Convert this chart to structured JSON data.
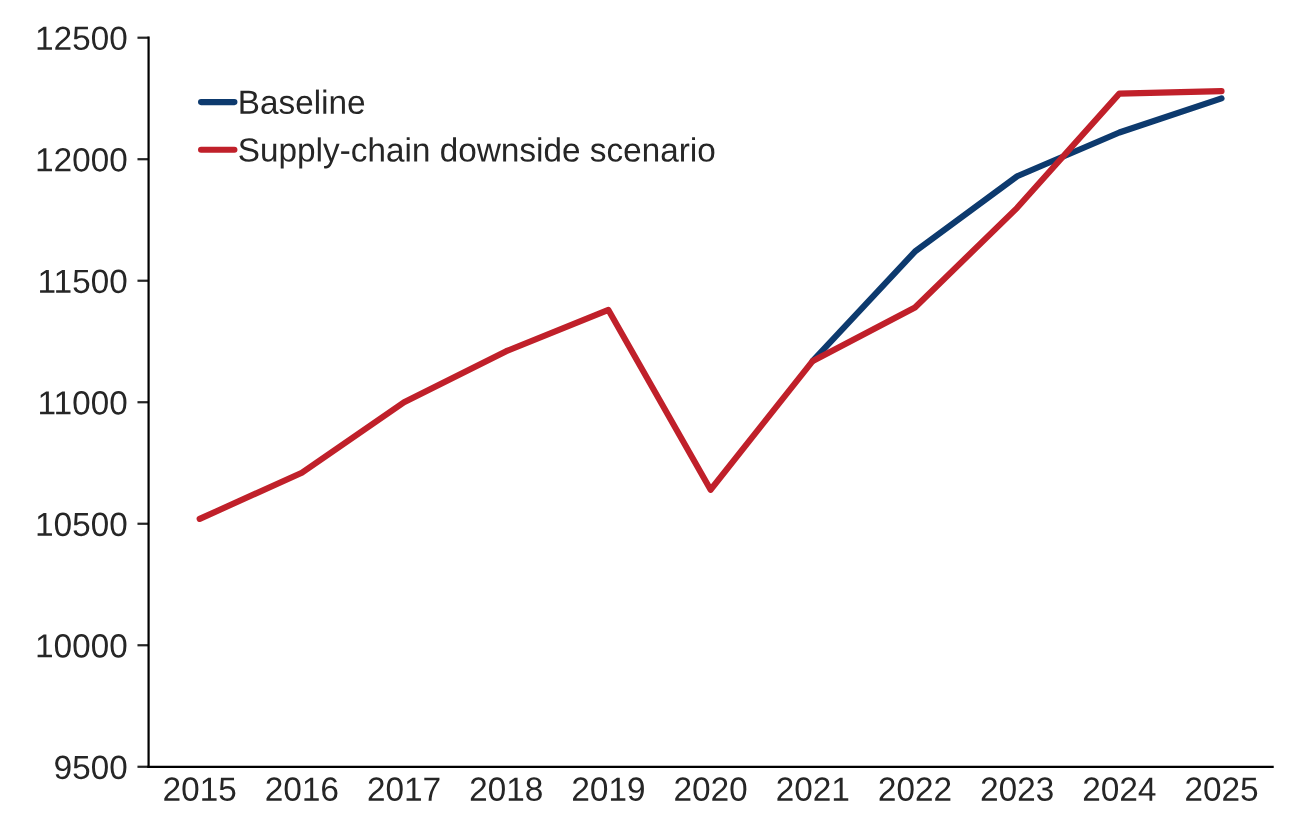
{
  "chart_data": {
    "type": "line",
    "categories": [
      "2015",
      "2016",
      "2017",
      "2018",
      "2019",
      "2020",
      "2021",
      "2022",
      "2023",
      "2024",
      "2025"
    ],
    "series": [
      {
        "name": "Baseline",
        "color": "#0d3a6e",
        "values": [
          null,
          null,
          null,
          null,
          null,
          null,
          11170,
          11620,
          11930,
          12110,
          12250
        ]
      },
      {
        "name": "Supply-chain downside scenario",
        "color": "#c0202a",
        "values": [
          10520,
          10710,
          11000,
          11210,
          11380,
          10640,
          11170,
          11390,
          11800,
          12270,
          12280
        ]
      }
    ],
    "ylim": [
      9500,
      12500
    ],
    "yticks": [
      9500,
      10000,
      10500,
      11000,
      11500,
      12000,
      12500
    ],
    "grid": false,
    "legend": "top left",
    "marker": "none",
    "line_style": "solid"
  }
}
